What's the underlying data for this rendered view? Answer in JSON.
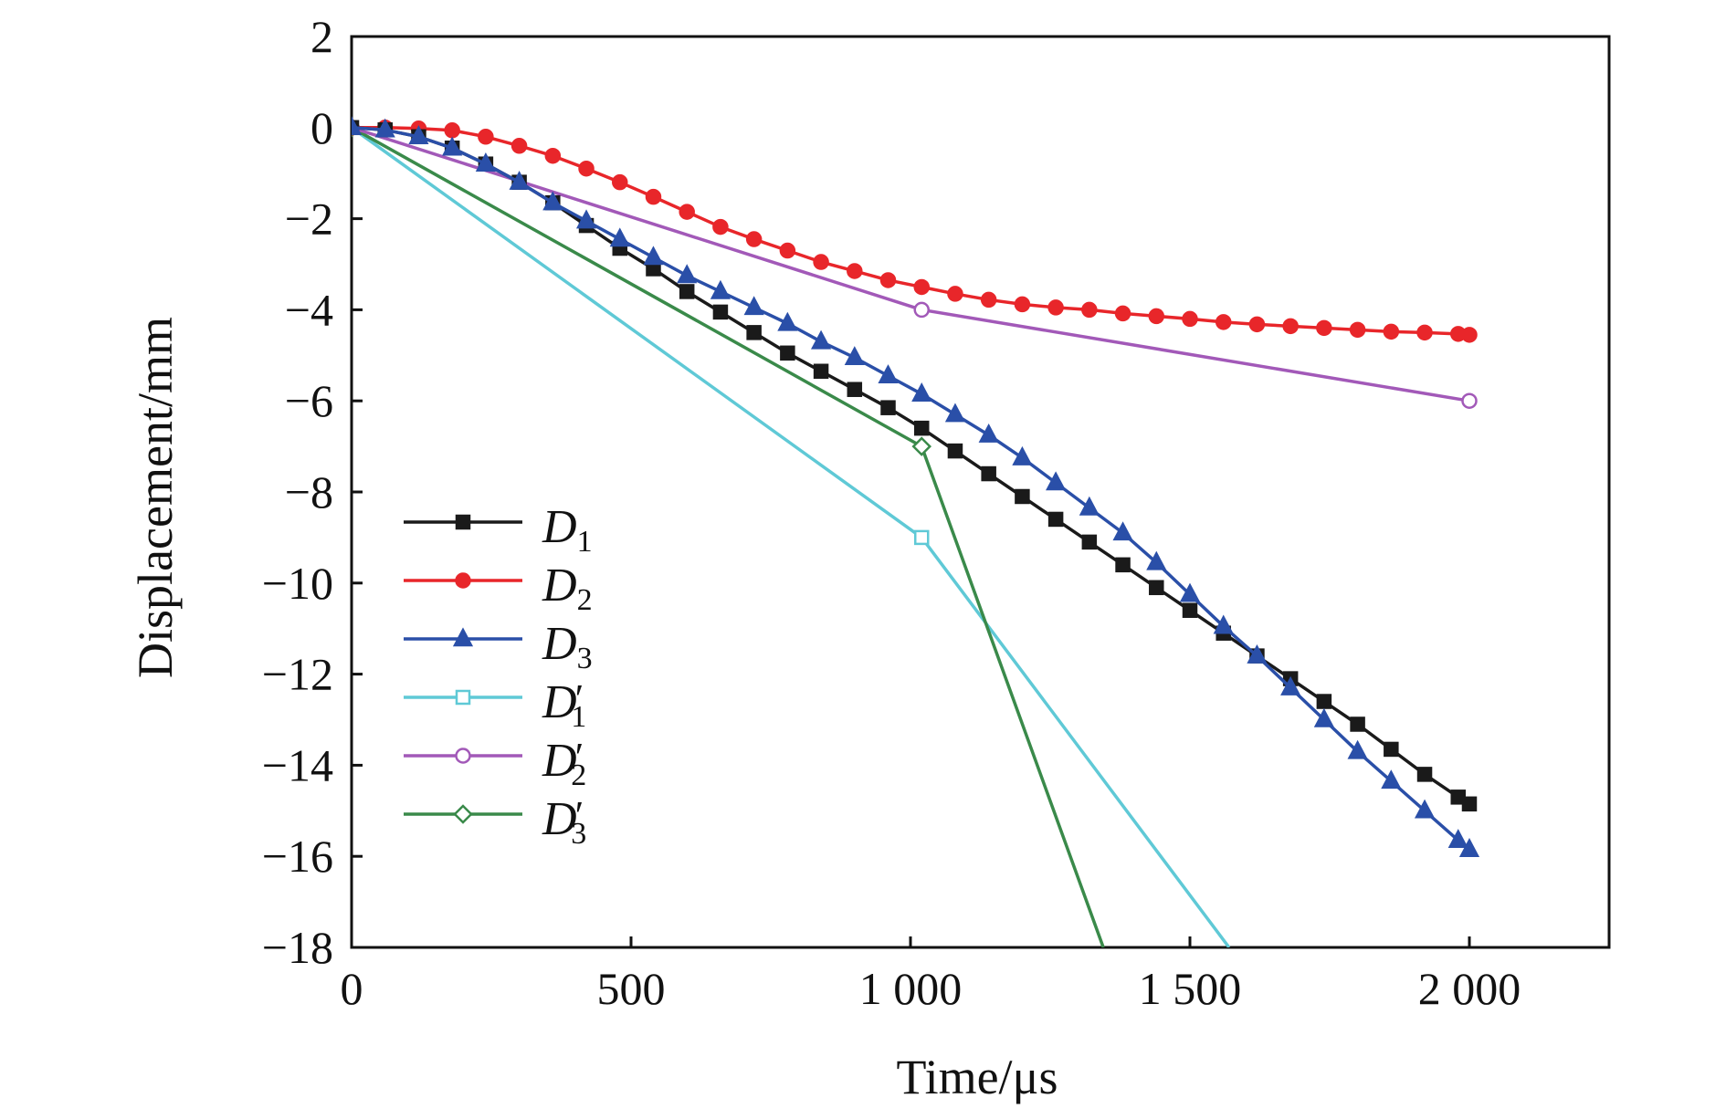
{
  "chart_data": {
    "type": "line",
    "xlabel": "Time/μs",
    "ylabel": "Displacement/mm",
    "xlim": [
      0,
      2250
    ],
    "ylim": [
      -18,
      2
    ],
    "xticks": [
      0,
      500,
      1000,
      1500,
      2000
    ],
    "xtick_labels": [
      "0",
      "500",
      "1 000",
      "1 500",
      "2 000"
    ],
    "yticks": [
      2,
      0,
      -2,
      -4,
      -6,
      -8,
      -10,
      -12,
      -14,
      -16,
      -18
    ],
    "ytick_labels": [
      "2",
      "0",
      "−2",
      "−4",
      "−6",
      "−8",
      "−10",
      "−12",
      "−14",
      "−16",
      "−18"
    ],
    "legend_position": "lower-left",
    "series": [
      {
        "name": "D1",
        "base": "D",
        "sub": "1",
        "prime": false,
        "color": "#1a1a1a",
        "marker": "square",
        "filled": true,
        "x": [
          0,
          60,
          120,
          180,
          240,
          300,
          360,
          420,
          480,
          540,
          600,
          660,
          720,
          780,
          840,
          900,
          960,
          1020,
          1080,
          1140,
          1200,
          1260,
          1320,
          1380,
          1440,
          1500,
          1560,
          1620,
          1680,
          1740,
          1800,
          1860,
          1920,
          1980,
          2000
        ],
        "y": [
          0,
          -0.05,
          -0.2,
          -0.45,
          -0.8,
          -1.2,
          -1.65,
          -2.15,
          -2.65,
          -3.1,
          -3.6,
          -4.05,
          -4.5,
          -4.95,
          -5.35,
          -5.75,
          -6.15,
          -6.6,
          -7.1,
          -7.6,
          -8.1,
          -8.6,
          -9.1,
          -9.6,
          -10.1,
          -10.6,
          -11.1,
          -11.6,
          -12.1,
          -12.6,
          -13.1,
          -13.65,
          -14.2,
          -14.7,
          -14.85
        ]
      },
      {
        "name": "D2",
        "base": "D",
        "sub": "2",
        "prime": false,
        "color": "#e8262a",
        "marker": "circle",
        "filled": true,
        "x": [
          0,
          60,
          120,
          180,
          240,
          300,
          360,
          420,
          480,
          540,
          600,
          660,
          720,
          780,
          840,
          900,
          960,
          1020,
          1080,
          1140,
          1200,
          1260,
          1320,
          1380,
          1440,
          1500,
          1560,
          1620,
          1680,
          1740,
          1800,
          1860,
          1920,
          1980,
          2000
        ],
        "y": [
          0,
          0,
          -0.02,
          -0.06,
          -0.2,
          -0.4,
          -0.62,
          -0.9,
          -1.2,
          -1.52,
          -1.85,
          -2.18,
          -2.45,
          -2.7,
          -2.95,
          -3.15,
          -3.35,
          -3.5,
          -3.65,
          -3.78,
          -3.88,
          -3.95,
          -4.0,
          -4.08,
          -4.14,
          -4.2,
          -4.27,
          -4.32,
          -4.36,
          -4.4,
          -4.44,
          -4.48,
          -4.5,
          -4.53,
          -4.55
        ]
      },
      {
        "name": "D3",
        "base": "D",
        "sub": "3",
        "prime": false,
        "color": "#2a4fa8",
        "marker": "triangle",
        "filled": true,
        "x": [
          0,
          60,
          120,
          180,
          240,
          300,
          360,
          420,
          480,
          540,
          600,
          660,
          720,
          780,
          840,
          900,
          960,
          1020,
          1080,
          1140,
          1200,
          1260,
          1320,
          1380,
          1440,
          1500,
          1560,
          1620,
          1680,
          1740,
          1800,
          1860,
          1920,
          1980,
          2000
        ],
        "y": [
          0,
          -0.05,
          -0.2,
          -0.45,
          -0.8,
          -1.2,
          -1.65,
          -2.05,
          -2.45,
          -2.85,
          -3.25,
          -3.6,
          -3.95,
          -4.3,
          -4.7,
          -5.05,
          -5.45,
          -5.85,
          -6.3,
          -6.75,
          -7.25,
          -7.8,
          -8.35,
          -8.9,
          -9.55,
          -10.25,
          -10.95,
          -11.6,
          -12.3,
          -13.0,
          -13.7,
          -14.35,
          -15.0,
          -15.65,
          -15.85
        ]
      },
      {
        "name": "D1'",
        "base": "D",
        "sub": "1",
        "prime": true,
        "color": "#5fc9d6",
        "marker": "square",
        "filled": false,
        "x": [
          0,
          1020,
          1570
        ],
        "y": [
          0,
          -9,
          -18
        ],
        "marker_indices": [
          1
        ]
      },
      {
        "name": "D2'",
        "base": "D",
        "sub": "2",
        "prime": true,
        "color": "#a259b8",
        "marker": "circle",
        "filled": false,
        "x": [
          0,
          1020,
          2000
        ],
        "y": [
          0,
          -4,
          -6
        ],
        "marker_indices": [
          1,
          2
        ]
      },
      {
        "name": "D3'",
        "base": "D",
        "sub": "3",
        "prime": true,
        "color": "#3a8a4a",
        "marker": "diamond",
        "filled": false,
        "x": [
          0,
          1020,
          1345
        ],
        "y": [
          0,
          -7,
          -18
        ],
        "marker_indices": [
          0,
          1
        ]
      }
    ]
  }
}
